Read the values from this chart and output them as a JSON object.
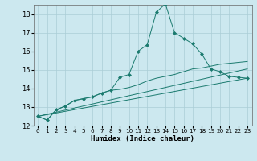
{
  "xlabel": "Humidex (Indice chaleur)",
  "background_color": "#cce8ef",
  "grid_color": "#aacdd6",
  "line_color": "#1a7a6e",
  "xlim": [
    -0.5,
    23.5
  ],
  "ylim": [
    12,
    18.5
  ],
  "yticks": [
    12,
    13,
    14,
    15,
    16,
    17,
    18
  ],
  "xticks": [
    0,
    1,
    2,
    3,
    4,
    5,
    6,
    7,
    8,
    9,
    10,
    11,
    12,
    13,
    14,
    15,
    16,
    17,
    18,
    19,
    20,
    21,
    22,
    23
  ],
  "series1_x": [
    0,
    1,
    2,
    3,
    4,
    5,
    6,
    7,
    8,
    9,
    10,
    11,
    12,
    13,
    14,
    15,
    16,
    17,
    18,
    19,
    20,
    21,
    22,
    23
  ],
  "series1_y": [
    12.5,
    12.3,
    12.85,
    13.05,
    13.35,
    13.45,
    13.55,
    13.75,
    13.9,
    14.6,
    14.75,
    16.0,
    16.35,
    18.1,
    18.55,
    17.0,
    16.7,
    16.4,
    15.85,
    15.05,
    14.9,
    14.65,
    14.6,
    14.55
  ],
  "series2_x": [
    0,
    1,
    2,
    3,
    4,
    5,
    6,
    7,
    8,
    9,
    10,
    11,
    12,
    13,
    14,
    15,
    16,
    17,
    18,
    19,
    20,
    21,
    22,
    23
  ],
  "series2_y": [
    12.5,
    12.3,
    12.85,
    13.05,
    13.35,
    13.45,
    13.55,
    13.75,
    13.9,
    13.95,
    14.05,
    14.2,
    14.4,
    14.55,
    14.65,
    14.75,
    14.9,
    15.05,
    15.1,
    15.2,
    15.3,
    15.35,
    15.4,
    15.45
  ],
  "series3_x": [
    0,
    23
  ],
  "series3_y": [
    12.5,
    15.05
  ],
  "series4_x": [
    0,
    23
  ],
  "series4_y": [
    12.5,
    14.55
  ]
}
